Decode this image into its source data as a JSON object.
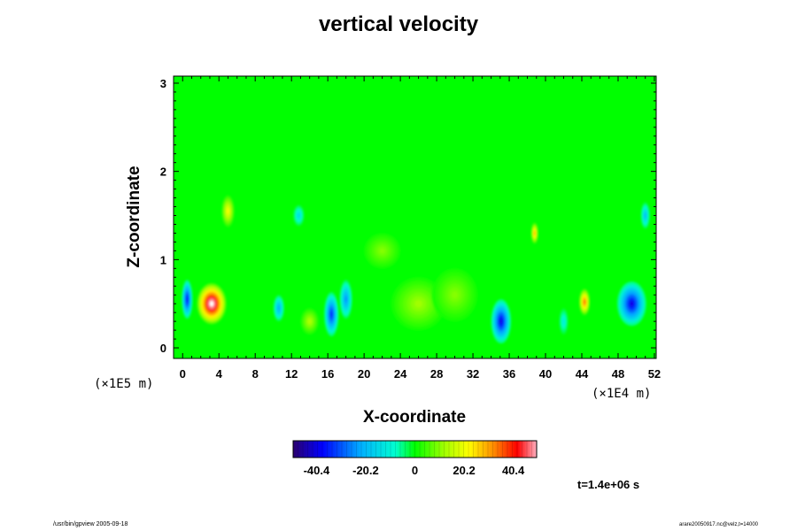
{
  "chart_data": {
    "type": "heatmap",
    "title": "vertical velocity",
    "xlabel": "X-coordinate",
    "ylabel": "Z-coordinate",
    "x_unit": "(×1E4 m)",
    "z_unit": "(×1E5 m)",
    "xlim": [
      -1,
      52.2
    ],
    "ylim": [
      -0.12,
      3.08
    ],
    "x_ticks": [
      "0",
      "4",
      "8",
      "12",
      "16",
      "20",
      "24",
      "28",
      "32",
      "36",
      "40",
      "44",
      "48",
      "52"
    ],
    "y_ticks": [
      "0",
      "1",
      "2",
      "3"
    ],
    "colorbar": {
      "range": [
        -50,
        50
      ],
      "tick_values": [
        -40.4,
        -20.2,
        0,
        20.2,
        40.4
      ],
      "tick_labels": [
        "-40.4",
        "-20.2",
        "0",
        "20.2",
        "40.4"
      ]
    },
    "background_value": 0,
    "features": [
      {
        "x": 3.2,
        "z": 0.5,
        "value": 55,
        "sx": 1.6,
        "sz": 0.23
      },
      {
        "x": 0.5,
        "z": 0.55,
        "value": -38,
        "sx": 0.6,
        "sz": 0.22
      },
      {
        "x": 10.6,
        "z": 0.45,
        "value": -22,
        "sx": 0.6,
        "sz": 0.15
      },
      {
        "x": 16.4,
        "z": 0.38,
        "value": -35,
        "sx": 0.8,
        "sz": 0.25
      },
      {
        "x": 18,
        "z": 0.55,
        "value": -25,
        "sx": 0.7,
        "sz": 0.22
      },
      {
        "x": 35.1,
        "z": 0.3,
        "value": -40,
        "sx": 1.1,
        "sz": 0.25
      },
      {
        "x": 24.8,
        "z": 0.38,
        "value": 30,
        "sx": 0.45,
        "sz": 0.12
      },
      {
        "x": 44.3,
        "z": 0.52,
        "value": 35,
        "sx": 0.6,
        "sz": 0.15
      },
      {
        "x": 49.5,
        "z": 0.5,
        "value": -40,
        "sx": 1.6,
        "sz": 0.25
      },
      {
        "x": 38.8,
        "z": 1.3,
        "value": 30,
        "sx": 0.4,
        "sz": 0.12
      },
      {
        "x": 5,
        "z": 1.55,
        "value": 22,
        "sx": 0.7,
        "sz": 0.18
      },
      {
        "x": 12.8,
        "z": 1.5,
        "value": -15,
        "sx": 0.6,
        "sz": 0.12
      },
      {
        "x": 51,
        "z": 1.5,
        "value": -20,
        "sx": 0.5,
        "sz": 0.15
      },
      {
        "x": 26,
        "z": 0.5,
        "value": 12,
        "sx": 3,
        "sz": 0.3
      },
      {
        "x": 30,
        "z": 0.6,
        "value": 10,
        "sx": 2.5,
        "sz": 0.3
      },
      {
        "x": 14,
        "z": 0.3,
        "value": 14,
        "sx": 1,
        "sz": 0.15
      },
      {
        "x": 42,
        "z": 0.3,
        "value": -12,
        "sx": 0.5,
        "sz": 0.15
      },
      {
        "x": 22,
        "z": 1.1,
        "value": 10,
        "sx": 2,
        "sz": 0.2
      }
    ]
  },
  "footer": {
    "left": "/usr/bin/gpview 2005-09-18",
    "right": "arare20050917.nc@velz,t=14000",
    "time": "t=1.4e+06 s"
  }
}
